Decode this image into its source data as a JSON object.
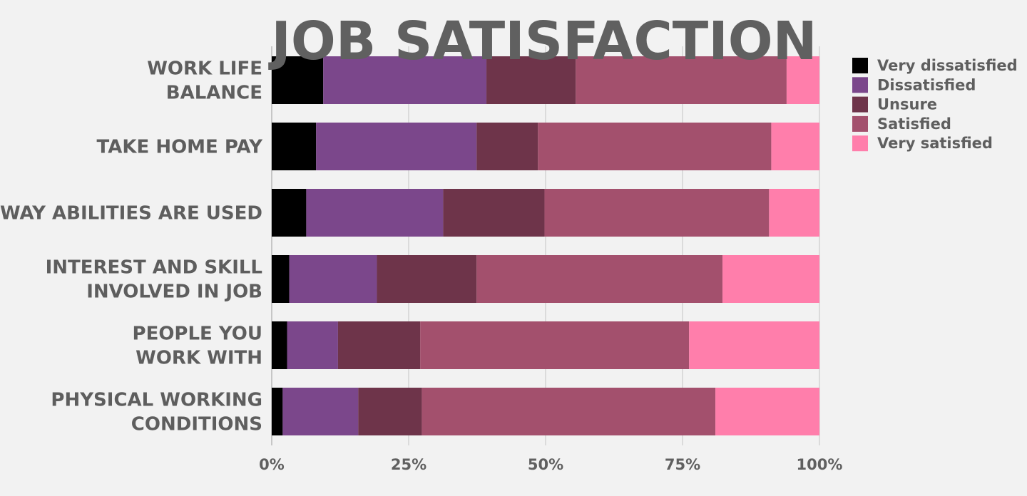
{
  "chart_data": {
    "type": "bar",
    "orientation": "horizontal",
    "stacked": "percent",
    "title": "JOB SATISFACTION",
    "xlabel": "",
    "ylabel": "",
    "xlim": [
      0,
      100
    ],
    "x_ticks": [
      "0%",
      "25%",
      "50%",
      "75%",
      "100%"
    ],
    "grid": true,
    "legend_position": "right",
    "categories": [
      [
        "WORK LIFE",
        "BALANCE"
      ],
      [
        "TAKE HOME PAY"
      ],
      [
        "WAY ABILITIES ARE USED"
      ],
      [
        "INTEREST AND SKILL",
        "INVOLVED IN JOB"
      ],
      [
        "PEOPLE YOU",
        "WORK WITH"
      ],
      [
        "PHYSICAL WORKING",
        "CONDITIONS"
      ]
    ],
    "series": [
      {
        "name": "Very dissatisfied",
        "color": "#000000",
        "values": [
          9.4,
          8.1,
          6.3,
          3.2,
          2.8,
          2.0
        ]
      },
      {
        "name": "Dissatisfied",
        "color": "#7b478b",
        "values": [
          29.8,
          29.3,
          25.0,
          16.0,
          9.3,
          13.8
        ]
      },
      {
        "name": "Unsure",
        "color": "#6e344a",
        "values": [
          16.3,
          11.2,
          18.5,
          18.2,
          15.0,
          11.6
        ]
      },
      {
        "name": "Satisfied",
        "color": "#a3506d",
        "values": [
          38.5,
          42.6,
          41.0,
          44.9,
          49.1,
          53.6
        ]
      },
      {
        "name": "Very satisfied",
        "color": "#ff7eab",
        "values": [
          6.0,
          8.8,
          9.2,
          17.7,
          23.8,
          19.0
        ]
      }
    ]
  }
}
